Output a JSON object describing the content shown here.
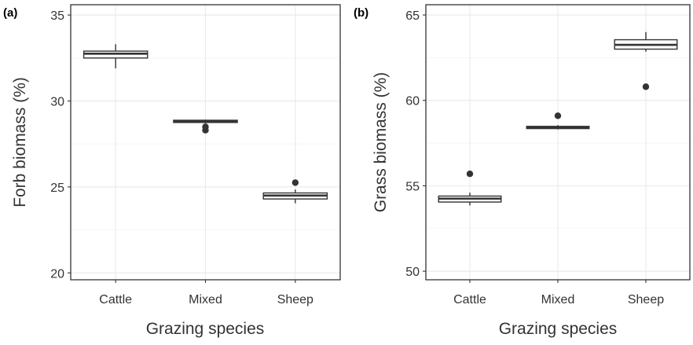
{
  "chart_data": [
    {
      "type": "box",
      "panel_tag": "(a)",
      "xlabel": "Grazing species",
      "ylabel": "Forb biomass (%)",
      "ylim": [
        19.6,
        35.6
      ],
      "yticks": [
        "20",
        "25",
        "30",
        "35"
      ],
      "ytick_values": [
        20,
        25,
        30,
        35
      ],
      "grid": true,
      "categories": [
        "Cattle",
        "Mixed",
        "Sheep"
      ],
      "boxes": [
        {
          "category": "Cattle",
          "whisker_low": 31.9,
          "q1": 32.5,
          "median": 32.75,
          "q3": 32.9,
          "whisker_high": 33.3,
          "outliers": []
        },
        {
          "category": "Mixed",
          "whisker_low": 28.7,
          "q1": 28.75,
          "median": 28.82,
          "q3": 28.88,
          "whisker_high": 28.92,
          "outliers": [
            28.3,
            28.5
          ]
        },
        {
          "category": "Sheep",
          "whisker_low": 24.05,
          "q1": 24.3,
          "median": 24.5,
          "q3": 24.65,
          "whisker_high": 24.85,
          "outliers": [
            25.25
          ]
        }
      ]
    },
    {
      "type": "box",
      "panel_tag": "(b)",
      "xlabel": "Grazing species",
      "ylabel": "Grass biomass (%)",
      "ylim": [
        49.5,
        65.6
      ],
      "yticks": [
        "50",
        "55",
        "60",
        "65"
      ],
      "ytick_values": [
        50,
        55,
        60,
        65
      ],
      "grid": true,
      "categories": [
        "Cattle",
        "Mixed",
        "Sheep"
      ],
      "boxes": [
        {
          "category": "Cattle",
          "whisker_low": 53.85,
          "q1": 54.05,
          "median": 54.25,
          "q3": 54.4,
          "whisker_high": 54.6,
          "outliers": [
            55.7
          ]
        },
        {
          "category": "Mixed",
          "whisker_low": 58.3,
          "q1": 58.35,
          "median": 58.42,
          "q3": 58.48,
          "whisker_high": 58.55,
          "outliers": [
            59.1
          ]
        },
        {
          "category": "Sheep",
          "whisker_low": 62.85,
          "q1": 63.0,
          "median": 63.25,
          "q3": 63.55,
          "whisker_high": 64.0,
          "outliers": [
            60.8
          ]
        }
      ]
    }
  ]
}
